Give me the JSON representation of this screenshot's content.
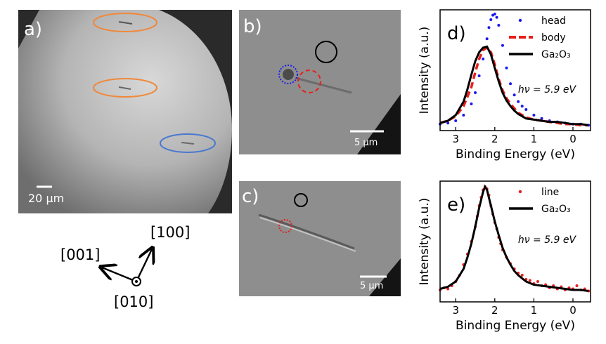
{
  "panels": {
    "a": {
      "letter": "a)",
      "scalebar": "20 μm"
    },
    "b": {
      "letter": "b)",
      "scalebar": "5 μm"
    },
    "c": {
      "letter": "c)",
      "scalebar": "5 μm"
    },
    "d": {
      "letter": "d)"
    },
    "e": {
      "letter": "e)"
    }
  },
  "axes_diagram": {
    "dir_left": "[001]",
    "dir_up": "[100]",
    "dir_out": "[010]"
  },
  "colors": {
    "orange": "#f0883a",
    "blue": "#4a78d0",
    "red": "#e8201c",
    "black": "#000000",
    "dot_blue": "#1a1aee"
  },
  "chart_data": [
    {
      "type": "line",
      "panel": "d",
      "xlabel": "Binding Energy (eV)",
      "ylabel": "Intensity (a.u.)",
      "x_reversed": true,
      "xlim": [
        3.4,
        -0.45
      ],
      "ylim": [
        0.0,
        1.0
      ],
      "xticks": [
        3,
        2,
        1,
        0
      ],
      "xtick_labels": [
        "3",
        "2",
        "1",
        "0"
      ],
      "annotation": "hν = 5.9 eV",
      "legend_position": "top-right",
      "series": [
        {
          "name": "head",
          "style": "dots",
          "color": "#1a1aee",
          "x": [
            3.4,
            3.2,
            3.0,
            2.8,
            2.6,
            2.5,
            2.4,
            2.3,
            2.2,
            2.15,
            2.1,
            2.05,
            2.0,
            1.95,
            1.9,
            1.8,
            1.7,
            1.6,
            1.5,
            1.4,
            1.3,
            1.2,
            1.0,
            0.8,
            0.6,
            0.4,
            0.2,
            0.0,
            -0.2,
            -0.4
          ],
          "y": [
            0.02,
            0.03,
            0.05,
            0.1,
            0.2,
            0.3,
            0.45,
            0.6,
            0.78,
            0.88,
            0.95,
            0.99,
            1.0,
            0.97,
            0.9,
            0.72,
            0.52,
            0.38,
            0.28,
            0.22,
            0.18,
            0.15,
            0.1,
            0.07,
            0.05,
            0.04,
            0.03,
            0.02,
            0.02,
            0.01
          ]
        },
        {
          "name": "body",
          "style": "dashed",
          "color": "#e8201c",
          "x": [
            3.4,
            3.2,
            3.0,
            2.8,
            2.6,
            2.5,
            2.4,
            2.3,
            2.2,
            2.1,
            2.0,
            1.9,
            1.8,
            1.7,
            1.6,
            1.5,
            1.4,
            1.2,
            1.0,
            0.8,
            0.6,
            0.4,
            0.2,
            0.0,
            -0.2,
            -0.4
          ],
          "y": [
            0.03,
            0.05,
            0.09,
            0.18,
            0.35,
            0.48,
            0.6,
            0.68,
            0.7,
            0.66,
            0.55,
            0.42,
            0.32,
            0.25,
            0.2,
            0.16,
            0.12,
            0.08,
            0.06,
            0.05,
            0.04,
            0.03,
            0.02,
            0.02,
            0.01,
            0.01
          ]
        },
        {
          "name": "Ga₂O₃",
          "style": "solid",
          "color": "#000000",
          "x": [
            3.4,
            3.2,
            3.0,
            2.8,
            2.7,
            2.6,
            2.5,
            2.4,
            2.3,
            2.2,
            2.1,
            2.0,
            1.9,
            1.8,
            1.7,
            1.6,
            1.5,
            1.4,
            1.3,
            1.2,
            1.0,
            0.8,
            0.6,
            0.4,
            0.2,
            0.0,
            -0.2,
            -0.4
          ],
          "y": [
            0.03,
            0.05,
            0.1,
            0.22,
            0.33,
            0.46,
            0.58,
            0.66,
            0.7,
            0.71,
            0.64,
            0.52,
            0.4,
            0.3,
            0.23,
            0.18,
            0.14,
            0.11,
            0.09,
            0.07,
            0.06,
            0.05,
            0.04,
            0.04,
            0.03,
            0.02,
            0.02,
            0.01
          ]
        }
      ]
    },
    {
      "type": "line",
      "panel": "e",
      "xlabel": "Binding Energy (eV)",
      "ylabel": "Intensity (a.u.)",
      "x_reversed": true,
      "xlim": [
        3.4,
        -0.45
      ],
      "ylim": [
        0.0,
        1.0
      ],
      "xticks": [
        3,
        2,
        1,
        0
      ],
      "xtick_labels": [
        "3",
        "2",
        "1",
        "0"
      ],
      "annotation": "hν = 5.9 eV",
      "legend_position": "top-right",
      "series": [
        {
          "name": "line",
          "style": "dots",
          "color": "#e8201c",
          "x": [
            3.4,
            3.3,
            3.2,
            3.1,
            3.0,
            2.9,
            2.8,
            2.7,
            2.6,
            2.5,
            2.45,
            2.4,
            2.35,
            2.3,
            2.25,
            2.2,
            2.15,
            2.1,
            2.05,
            2.0,
            1.95,
            1.9,
            1.85,
            1.8,
            1.7,
            1.6,
            1.5,
            1.4,
            1.3,
            1.2,
            1.1,
            1.0,
            0.9,
            0.8,
            0.7,
            0.6,
            0.5,
            0.4,
            0.3,
            0.2,
            0.1,
            0.0,
            -0.1,
            -0.2,
            -0.3,
            -0.4
          ],
          "y": [
            0.02,
            0.04,
            0.03,
            0.06,
            0.1,
            0.16,
            0.26,
            0.36,
            0.48,
            0.62,
            0.72,
            0.82,
            0.9,
            0.97,
            1.0,
            0.98,
            0.92,
            0.82,
            0.74,
            0.66,
            0.6,
            0.52,
            0.46,
            0.4,
            0.33,
            0.27,
            0.22,
            0.18,
            0.16,
            0.12,
            0.11,
            0.08,
            0.1,
            0.06,
            0.07,
            0.04,
            0.06,
            0.03,
            0.05,
            0.02,
            0.04,
            0.03,
            0.06,
            0.02,
            0.03,
            0.01
          ]
        },
        {
          "name": "Ga₂O₃",
          "style": "solid",
          "color": "#000000",
          "x": [
            3.4,
            3.2,
            3.0,
            2.8,
            2.7,
            2.6,
            2.5,
            2.4,
            2.3,
            2.25,
            2.2,
            2.1,
            2.0,
            1.9,
            1.8,
            1.7,
            1.6,
            1.5,
            1.4,
            1.3,
            1.2,
            1.0,
            0.8,
            0.6,
            0.4,
            0.2,
            0.0,
            -0.2,
            -0.4
          ],
          "y": [
            0.03,
            0.05,
            0.1,
            0.22,
            0.33,
            0.46,
            0.62,
            0.8,
            0.95,
            1.0,
            0.97,
            0.82,
            0.67,
            0.54,
            0.42,
            0.33,
            0.26,
            0.2,
            0.16,
            0.13,
            0.1,
            0.07,
            0.06,
            0.05,
            0.04,
            0.03,
            0.02,
            0.02,
            0.01
          ]
        }
      ]
    }
  ]
}
